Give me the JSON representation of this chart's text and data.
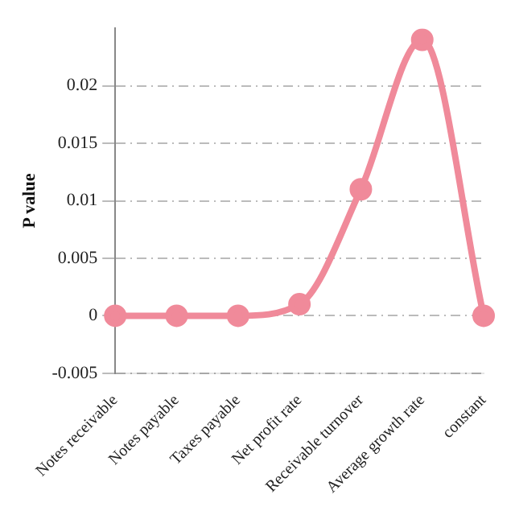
{
  "chart_data": {
    "type": "line",
    "ylabel": "P value",
    "categories": [
      "Notes receivable",
      "Notes payable",
      "Taxes payable",
      "Net profit rate",
      "Receivable turnover",
      "Average growth rate",
      "constant"
    ],
    "series": [
      {
        "color": "#f08a9a",
        "values": [
          0,
          0,
          0,
          0.001,
          0.011,
          0.024,
          0
        ]
      }
    ],
    "ylim": [
      -0.005,
      0.025
    ],
    "yticks": [
      -0.005,
      0,
      0.005,
      0.01,
      0.015,
      0.02
    ],
    "grid": "y",
    "marker": "circle",
    "line_style": "solid",
    "legend": false
  }
}
